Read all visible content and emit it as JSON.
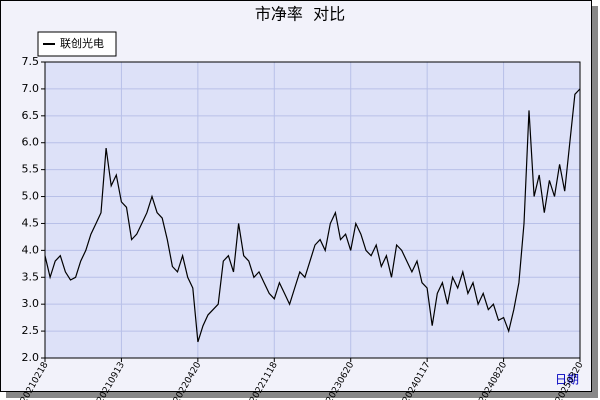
{
  "chart_data": {
    "type": "line",
    "title": "市净率  对比",
    "x_label": "日期",
    "categories": [
      "20210218",
      null,
      null,
      null,
      null,
      null,
      null,
      null,
      null,
      null,
      null,
      null,
      null,
      null,
      null,
      "20210913",
      null,
      null,
      null,
      null,
      null,
      null,
      null,
      null,
      null,
      null,
      null,
      null,
      null,
      null,
      "20220420",
      null,
      null,
      null,
      null,
      null,
      null,
      null,
      null,
      null,
      null,
      null,
      null,
      null,
      null,
      "20221118",
      null,
      null,
      null,
      null,
      null,
      null,
      null,
      null,
      null,
      null,
      null,
      null,
      null,
      null,
      "20230620",
      null,
      null,
      null,
      null,
      null,
      null,
      null,
      null,
      null,
      null,
      null,
      null,
      null,
      null,
      "20240117",
      null,
      null,
      null,
      null,
      null,
      null,
      null,
      null,
      null,
      null,
      null,
      null,
      null,
      null,
      "20240820",
      null,
      null,
      null,
      null,
      null,
      null,
      null,
      null,
      null,
      null,
      null,
      null,
      null,
      null,
      "20250320"
    ],
    "series": [
      {
        "name": "联创光电",
        "color": "#000000",
        "values": [
          3.9,
          3.5,
          3.8,
          3.9,
          3.6,
          3.45,
          3.5,
          3.8,
          4.0,
          4.3,
          4.5,
          4.7,
          5.9,
          5.2,
          5.4,
          4.9,
          4.8,
          4.2,
          4.3,
          4.5,
          4.7,
          5.0,
          4.7,
          4.6,
          4.2,
          3.7,
          3.6,
          3.9,
          3.5,
          3.3,
          2.3,
          2.6,
          2.8,
          2.9,
          3.0,
          3.8,
          3.9,
          3.6,
          4.5,
          3.9,
          3.8,
          3.5,
          3.6,
          3.4,
          3.2,
          3.1,
          3.4,
          3.2,
          3.0,
          3.3,
          3.6,
          3.5,
          3.8,
          4.1,
          4.2,
          4.0,
          4.5,
          4.7,
          4.2,
          4.3,
          4.0,
          4.5,
          4.3,
          4.0,
          3.9,
          4.1,
          3.7,
          3.9,
          3.5,
          4.1,
          4.0,
          3.8,
          3.6,
          3.8,
          3.4,
          3.3,
          2.6,
          3.2,
          3.4,
          3.0,
          3.5,
          3.3,
          3.6,
          3.2,
          3.4,
          3.0,
          3.2,
          2.9,
          3.0,
          2.7,
          2.75,
          2.5,
          2.9,
          3.4,
          4.5,
          6.6,
          5.0,
          5.4,
          4.7,
          5.3,
          5.0,
          5.6,
          5.1,
          6.0,
          6.9,
          7.0
        ]
      }
    ],
    "ylim": [
      2.0,
      7.5
    ],
    "yticks": [
      {
        "value": 2.0,
        "label": "2.0"
      },
      2.5,
      {
        "value": 3.0,
        "label": "3.0"
      },
      3.5,
      {
        "value": 4.0,
        "label": "4.0"
      },
      4.5,
      {
        "value": 5.0,
        "label": "5.0"
      },
      5.5,
      {
        "value": 6.0,
        "label": "6.0"
      },
      6.5,
      {
        "value": 7.0,
        "label": "7.0"
      },
      7.5
    ],
    "grid": true
  }
}
